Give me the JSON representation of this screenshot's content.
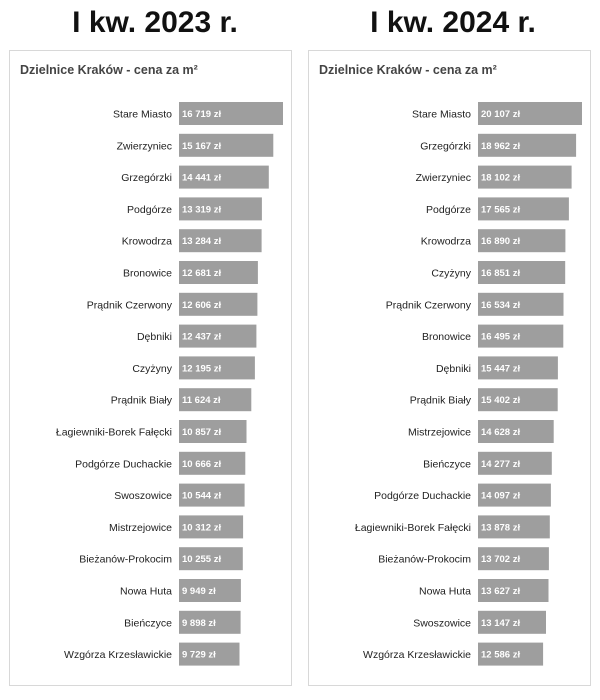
{
  "chart_data": [
    {
      "type": "bar",
      "heading": "I kw. 2023 r.",
      "title": "Dzielnice Kraków - cena za m²",
      "unit": "zł",
      "bar_color": "#9e9e9e",
      "categories": [
        "Stare Miasto",
        "Zwierzyniec",
        "Grzegórzki",
        "Podgórze",
        "Krowodrza",
        "Bronowice",
        "Prądnik Czerwony",
        "Dębniki",
        "Czyżyny",
        "Prądnik Biały",
        "Łagiewniki-Borek Fałęcki",
        "Podgórze Duchackie",
        "Swoszowice",
        "Mistrzejowice",
        "Bieżanów-Prokocim",
        "Nowa Huta",
        "Bieńczyce",
        "Wzgórza Krzesławickie"
      ],
      "values": [
        16719,
        15167,
        14441,
        13319,
        13284,
        12681,
        12606,
        12437,
        12195,
        11624,
        10857,
        10666,
        10544,
        10312,
        10255,
        9949,
        9898,
        9729
      ],
      "labels": [
        "16 719 zł",
        "15 167 zł",
        "14 441 zł",
        "13 319 zł",
        "13 284 zł",
        "12 681 zł",
        "12 606 zł",
        "12 437 zł",
        "12 195 zł",
        "11 624 zł",
        "10 857 zł",
        "10 666 zł",
        "10 544 zł",
        "10 312 zł",
        "10 255 zł",
        "9 949 zł",
        "9 898 zł",
        "9 729 zł"
      ]
    },
    {
      "type": "bar",
      "heading": "I kw. 2024 r.",
      "title": "Dzielnice Kraków - cena za m²",
      "unit": "zł",
      "bar_color": "#9e9e9e",
      "categories": [
        "Stare Miasto",
        "Grzegórzki",
        "Zwierzyniec",
        "Podgórze",
        "Krowodrza",
        "Czyżyny",
        "Prądnik Czerwony",
        "Bronowice",
        "Dębniki",
        "Prądnik Biały",
        "Mistrzejowice",
        "Bieńczyce",
        "Podgórze Duchackie",
        "Łagiewniki-Borek Fałęcki",
        "Bieżanów-Prokocim",
        "Nowa Huta",
        "Swoszowice",
        "Wzgórza Krzesławickie"
      ],
      "values": [
        20107,
        18962,
        18102,
        17565,
        16890,
        16851,
        16534,
        16495,
        15447,
        15402,
        14628,
        14277,
        14097,
        13878,
        13702,
        13627,
        13147,
        12586
      ],
      "labels": [
        "20 107 zł",
        "18 962 zł",
        "18 102 zł",
        "17 565 zł",
        "16 890 zł",
        "16 851 zł",
        "16 534 zł",
        "16 495 zł",
        "15 447 zł",
        "15 402 zł",
        "14 628 zł",
        "14 277 zł",
        "14 097 zł",
        "13 878 zł",
        "13 702 zł",
        "13 627 zł",
        "13 147 zł",
        "12 586 zł"
      ]
    }
  ]
}
